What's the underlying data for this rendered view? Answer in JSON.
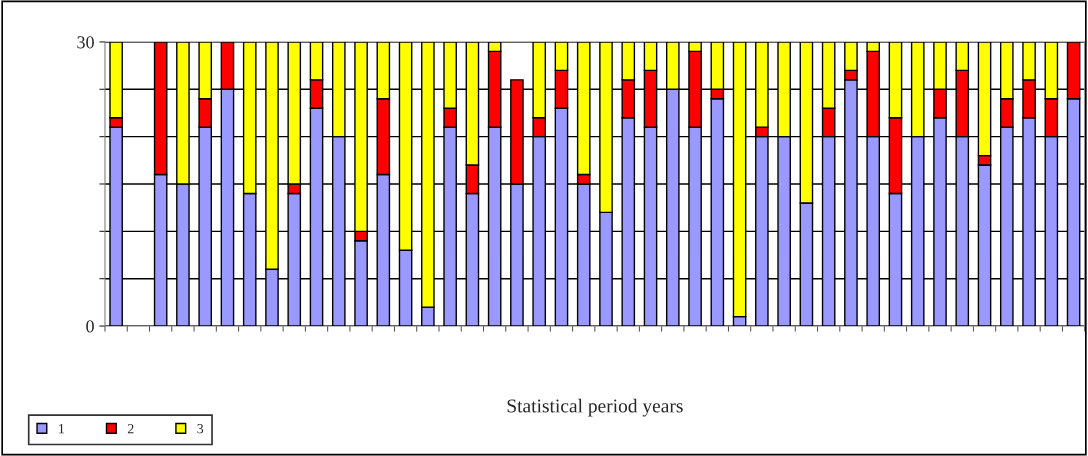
{
  "chart_data": {
    "type": "bar",
    "stacked": true,
    "xlabel": "Statistical period years",
    "categories": [
      null,
      null,
      null,
      null,
      null,
      null,
      null,
      null,
      null,
      null,
      null,
      null,
      null,
      null,
      null,
      null,
      null,
      null,
      null,
      null,
      null,
      null,
      null,
      null,
      null,
      null,
      null,
      null,
      null,
      null,
      null,
      null,
      null,
      null,
      null,
      null,
      null,
      null,
      null,
      null,
      null,
      null,
      null,
      null
    ],
    "series": [
      {
        "name": "1",
        "color": "#9999ff",
        "values": [
          21,
          null,
          16,
          15,
          21,
          25,
          14,
          6,
          14,
          23,
          20,
          9,
          16,
          8,
          2,
          21,
          14,
          21,
          15,
          20,
          23,
          15,
          12,
          22,
          21,
          25,
          21,
          24,
          1,
          20,
          20,
          13,
          20,
          26,
          20,
          14,
          20,
          22,
          20,
          17,
          21,
          22,
          20,
          24
        ]
      },
      {
        "name": "2",
        "color": "#ff0000",
        "values": [
          1,
          null,
          14,
          null,
          3,
          5,
          null,
          null,
          1,
          3,
          null,
          1,
          8,
          null,
          null,
          2,
          3,
          8,
          11,
          2,
          4,
          1,
          null,
          4,
          6,
          null,
          8,
          1,
          null,
          1,
          null,
          null,
          3,
          1,
          9,
          8,
          null,
          3,
          7,
          1,
          3,
          4,
          4,
          6
        ]
      },
      {
        "name": "3",
        "color": "#ffff00",
        "values": [
          8,
          null,
          null,
          15,
          6,
          null,
          16,
          24,
          15,
          4,
          10,
          20,
          6,
          22,
          28,
          7,
          13,
          1,
          null,
          8,
          3,
          14,
          18,
          4,
          3,
          5,
          1,
          5,
          29,
          9,
          10,
          17,
          7,
          3,
          1,
          8,
          10,
          5,
          3,
          12,
          6,
          4,
          6,
          null
        ]
      }
    ],
    "ylim": [
      0,
      30
    ],
    "yticks": [
      0,
      {
        "value": 5,
        "label": null
      },
      {
        "value": 10,
        "label": null
      },
      {
        "value": 15,
        "label": null
      },
      {
        "value": 20,
        "label": null
      },
      {
        "value": 25,
        "label": null
      },
      30
    ],
    "grid": "y",
    "legend": "bottom left"
  }
}
